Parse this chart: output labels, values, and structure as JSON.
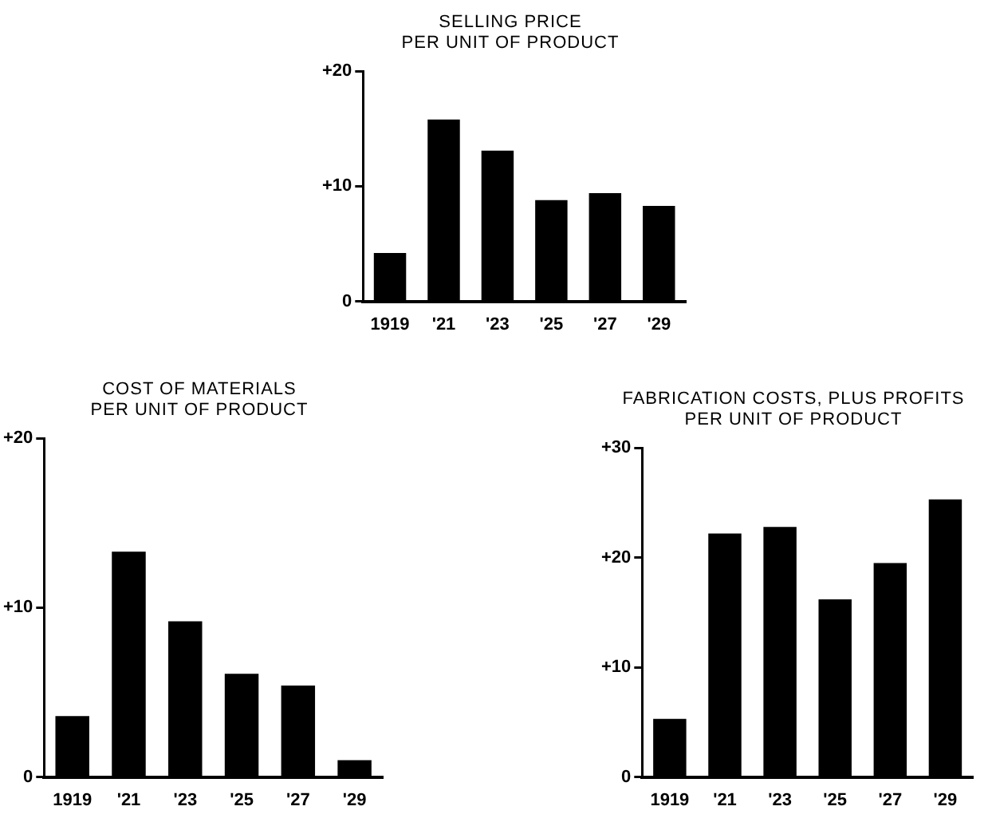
{
  "chart_data": [
    {
      "type": "bar",
      "title": "SELLING PRICE\nPER UNIT OF PRODUCT",
      "categories": [
        "1919",
        "'21",
        "'23",
        "'25",
        "'27",
        "'29"
      ],
      "values": [
        4.2,
        15.8,
        13.1,
        8.8,
        9.4,
        8.3
      ],
      "color": "#000000",
      "ylim": [
        0,
        20
      ],
      "yticks": [
        {
          "value": 0,
          "label": "0"
        },
        {
          "value": 10,
          "label": "+10"
        },
        {
          "value": 20,
          "label": "+20"
        }
      ],
      "grid": false,
      "legend": false
    },
    {
      "type": "bar",
      "title": "COST OF MATERIALS\nPER UNIT OF PRODUCT",
      "categories": [
        "1919",
        "'21",
        "'23",
        "'25",
        "'27",
        "'29"
      ],
      "values": [
        3.6,
        13.3,
        9.2,
        6.1,
        5.4,
        1.0
      ],
      "color": "#000000",
      "ylim": [
        0,
        20
      ],
      "yticks": [
        {
          "value": 0,
          "label": "0"
        },
        {
          "value": 10,
          "label": "+10"
        },
        {
          "value": 20,
          "label": "+20"
        }
      ],
      "grid": false,
      "legend": false
    },
    {
      "type": "bar",
      "title": "FABRICATION COSTS, PLUS PROFITS\nPER UNIT OF PRODUCT",
      "categories": [
        "1919",
        "'21",
        "'23",
        "'25",
        "'27",
        "'29"
      ],
      "values": [
        5.3,
        22.2,
        22.8,
        16.2,
        19.5,
        25.3
      ],
      "color": "#000000",
      "ylim": [
        0,
        30
      ],
      "yticks": [
        {
          "value": 0,
          "label": "0"
        },
        {
          "value": 10,
          "label": "+10"
        },
        {
          "value": 20,
          "label": "+20"
        },
        {
          "value": 30,
          "label": "+30"
        }
      ],
      "grid": false,
      "legend": false
    }
  ]
}
